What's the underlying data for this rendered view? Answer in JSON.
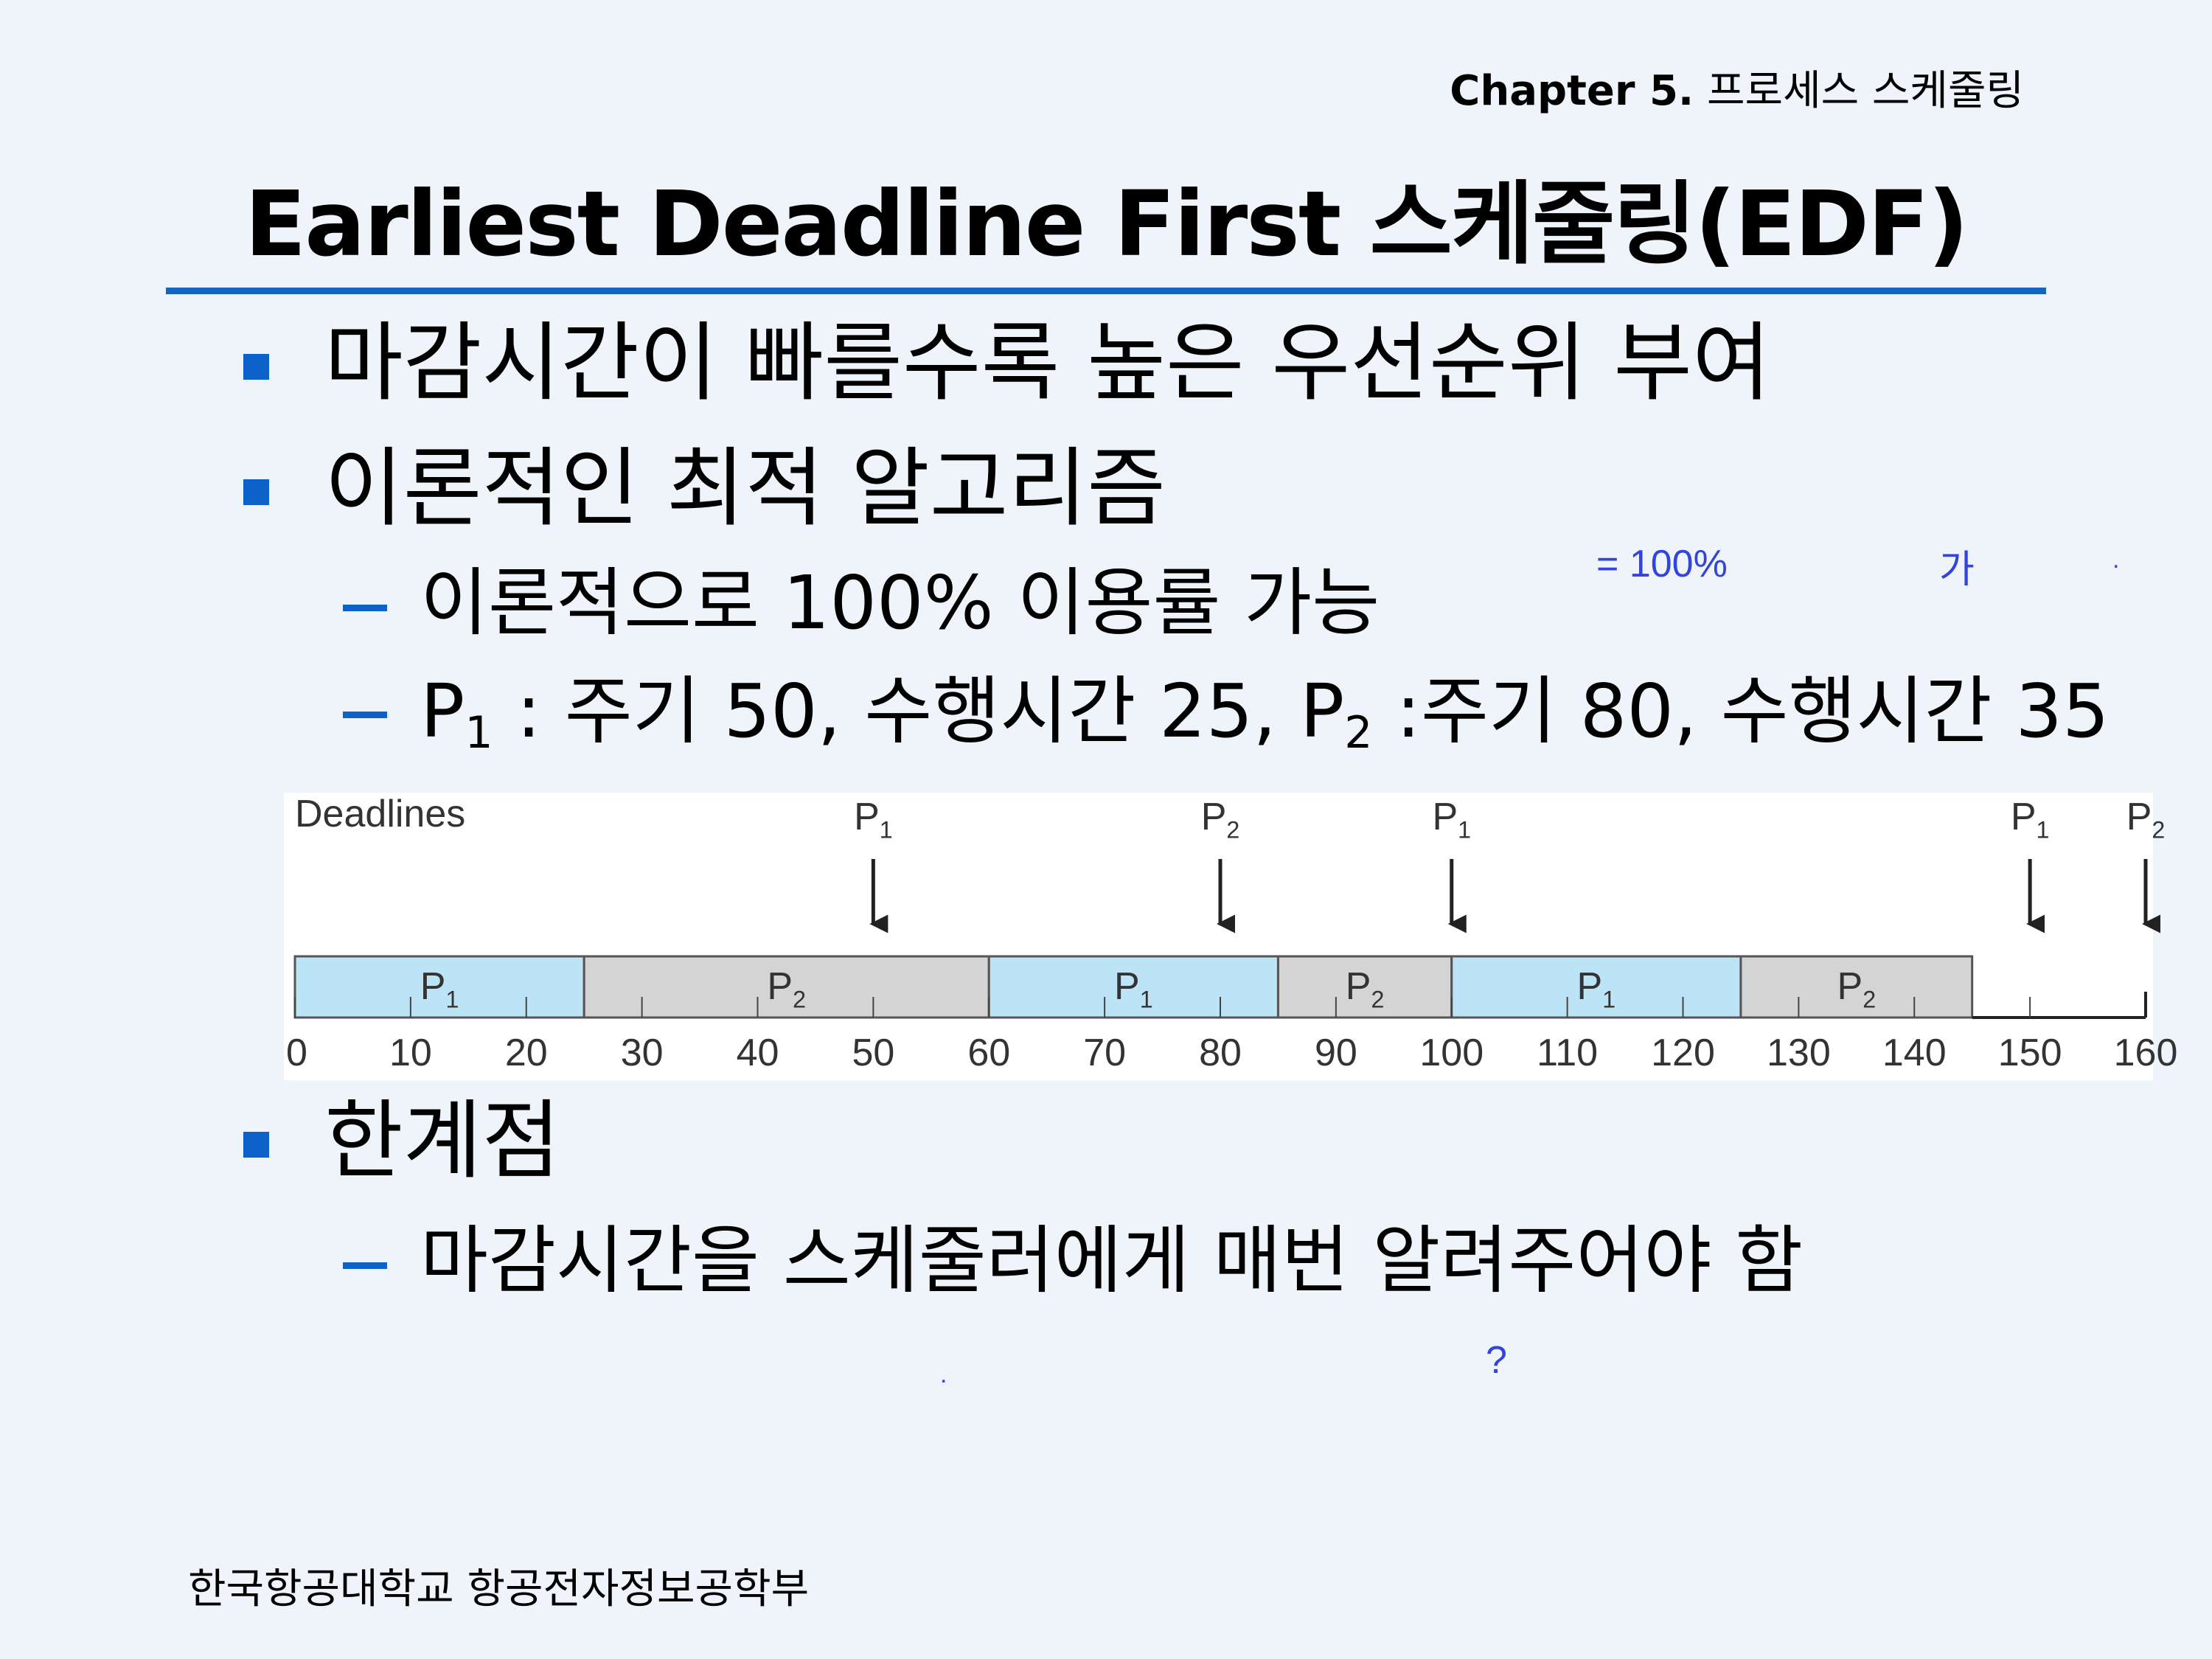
{
  "header": {
    "chapter_num": "Chapter 5.",
    "chapter_title": "프로세스 스케줄링",
    "title": "Earliest Deadline First 스케줄링(EDF)"
  },
  "bullets": {
    "b1": "마감시간이 빠를수록 높은 우선순위 부여",
    "b2": "이론적인 최적 알고리즘",
    "b2_sub1": "이론적으로 100% 이용률 가능",
    "b2_sub2": {
      "p1": "P",
      "p1_sub": "1",
      "text1": " : 주기 50, 수행시간 25, ",
      "p2": "P",
      "p2_sub": "2",
      "text2": " :주기 80, 수행시간 35"
    },
    "b3": "한계점",
    "b3_sub1": "마감시간을 스케줄러에게 매번 알려주어야 함"
  },
  "notes": {
    "n1": "= 100%",
    "n2": "가",
    "n3": ".",
    "n4": ".",
    "n5": "?"
  },
  "footer": "한국항공대학교 항공전자정보공학부",
  "colors": {
    "background": "#eef4fa",
    "accent": "#0d62c9",
    "p1_fill": "#bde3f7",
    "p2_fill": "#d4d4d4"
  },
  "chart_data": {
    "type": "timeline",
    "deadlines_label": "Deadlines",
    "deadlines": [
      {
        "process": "P",
        "sub": "1",
        "time": 50
      },
      {
        "process": "P",
        "sub": "2",
        "time": 80
      },
      {
        "process": "P",
        "sub": "1",
        "time": 100
      },
      {
        "process": "P",
        "sub": "1",
        "time": 150
      },
      {
        "process": "P",
        "sub": "2",
        "time": 160
      }
    ],
    "segments": [
      {
        "process": "P",
        "sub": "1",
        "start": 0,
        "end": 25
      },
      {
        "process": "P",
        "sub": "2",
        "start": 25,
        "end": 60
      },
      {
        "process": "P",
        "sub": "1",
        "start": 60,
        "end": 85
      },
      {
        "process": "P",
        "sub": "2",
        "start": 85,
        "end": 100
      },
      {
        "process": "P",
        "sub": "1",
        "start": 100,
        "end": 125
      },
      {
        "process": "P",
        "sub": "2",
        "start": 125,
        "end": 145
      }
    ],
    "xlim": [
      0,
      160
    ],
    "ticks": [
      0,
      10,
      20,
      30,
      40,
      50,
      60,
      70,
      80,
      90,
      100,
      110,
      120,
      130,
      140,
      150,
      160
    ]
  }
}
